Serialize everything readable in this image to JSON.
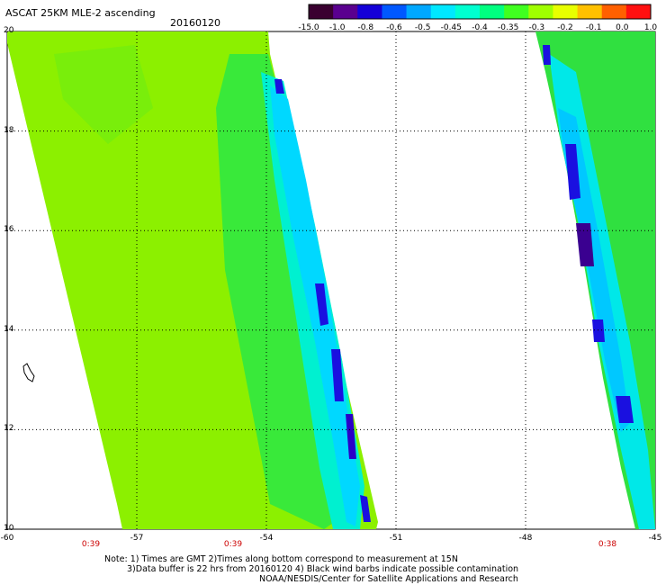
{
  "title": "ASCAT 25KM MLE-2 ascending",
  "date": "20160120",
  "colorbar": {
    "labels": [
      "-15.0",
      "-1.0",
      "-0.8",
      "-0.6",
      "-0.5",
      "-0.45",
      "-0.4",
      "-0.35",
      "-0.3",
      "-0.2",
      "-0.1",
      "0.0",
      "1.0"
    ],
    "colors": [
      "#3a0030",
      "#5a008f",
      "#1400d8",
      "#0058ff",
      "#00a8ff",
      "#00e8ff",
      "#00ffd0",
      "#00ff80",
      "#40ff20",
      "#a0ff00",
      "#e8ff00",
      "#ffc000",
      "#ff6000",
      "#ff1010"
    ]
  },
  "axes": {
    "lat_ticks": [
      "20",
      "18",
      "16",
      "14",
      "12",
      "10"
    ],
    "lon_ticks": [
      "-60",
      "-57",
      "-54",
      "-51",
      "-48",
      "-45"
    ],
    "lat_range": [
      10,
      20
    ],
    "lon_range": [
      -60,
      -45
    ],
    "grid": true
  },
  "times": [
    "0:39",
    "0:39",
    "0:38"
  ],
  "notes": [
    "Note: 1) Times are GMT 2)Times along bottom correspond to measurement at 15N",
    "3)Data buffer is 22 hrs from 20160120 4) Black wind barbs indicate possible contamination",
    "NOAA/NESDIS/Center for Satellite Applications and Research"
  ]
}
